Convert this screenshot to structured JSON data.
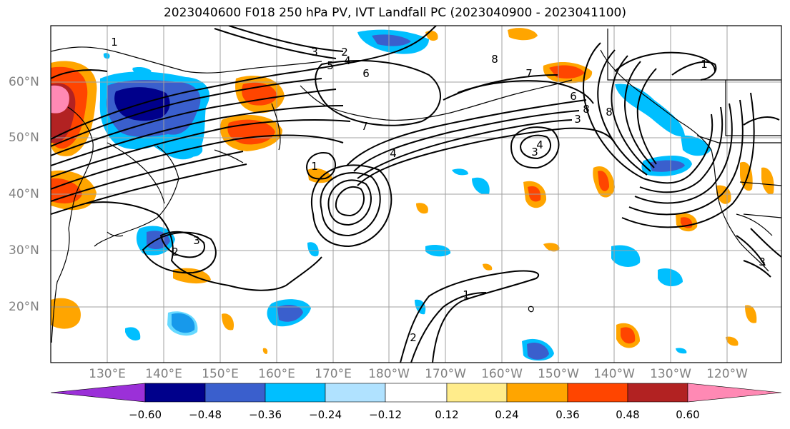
{
  "title": "2023040600 F018 250 hPa PV, IVT Landfall PC (2023040900 - 2023041100)",
  "lon_labels": [
    "130°E",
    "140°E",
    "150°E",
    "160°E",
    "170°E",
    "180°W",
    "170°W",
    "160°W",
    "150°W",
    "140°W",
    "130°W",
    "120°W"
  ],
  "lat_labels": [
    "60°N",
    "50°N",
    "40°N",
    "30°N",
    "20°N"
  ],
  "contour_labels": [
    "1",
    "1",
    "1",
    "1",
    "2",
    "2",
    "2",
    "3",
    "3",
    "3",
    "3",
    "3",
    "4",
    "4",
    "4",
    "5",
    "6",
    "6",
    "7",
    "7",
    "8",
    "8",
    "8"
  ],
  "colorbar": {
    "tick_labels": [
      "−0.60",
      "−0.48",
      "−0.36",
      "−0.24",
      "−0.12",
      "0.12",
      "0.24",
      "0.36",
      "0.48",
      "0.60"
    ],
    "colors": [
      "#9b30d8",
      "#00008b",
      "#3a5fcd",
      "#00bfff",
      "#b0e2ff",
      "#ffffff",
      "#ffec8b",
      "#ffa500",
      "#ff4500",
      "#b22222",
      "#ff89b4"
    ]
  }
}
